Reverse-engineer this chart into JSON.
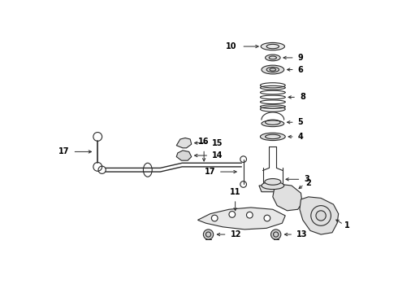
{
  "bg_color": "#ffffff",
  "line_color": "#2a2a2a",
  "text_color": "#000000",
  "fig_width": 4.9,
  "fig_height": 3.6,
  "dpi": 100
}
